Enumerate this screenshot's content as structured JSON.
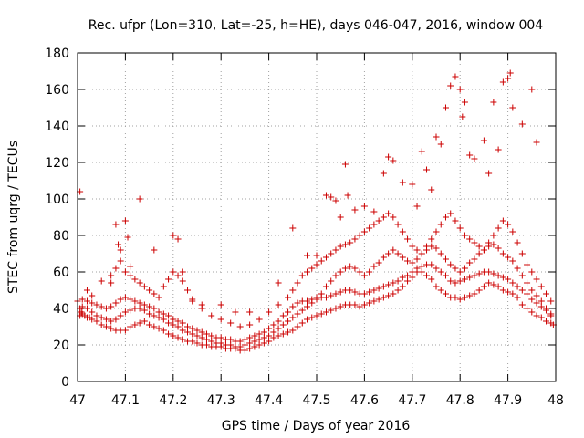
{
  "chart_data": {
    "type": "scatter",
    "title": "Rec. ufpr (Lon=310, Lat=-25, h=HE), days 046-047, 2016, window 004",
    "xlabel": "GPS time / Days of year 2016",
    "ylabel": "STEC from uqrg / TECUs",
    "xlim": [
      47,
      48
    ],
    "ylim": [
      0,
      180
    ],
    "xticks": [
      "47",
      "47.1",
      "47.2",
      "47.3",
      "47.4",
      "47.5",
      "47.6",
      "47.7",
      "47.8",
      "47.9",
      "48"
    ],
    "yticks": [
      "0",
      "20",
      "40",
      "60",
      "80",
      "100",
      "120",
      "140",
      "160",
      "180"
    ],
    "grid": true,
    "marker": "+",
    "color": "#cc0000",
    "series": [
      {
        "x": [
          47.005,
          47.008,
          47.01,
          47.015,
          47.02,
          47.025,
          47.03,
          47.04,
          47.05,
          47.06,
          47.07,
          47.08,
          47.09,
          47.1,
          47.11,
          47.12,
          47.13,
          47.14,
          47.15,
          47.16,
          47.17,
          47.18,
          47.19,
          47.2,
          47.21,
          47.22,
          47.23,
          47.24,
          47.25,
          47.26,
          47.27,
          47.28,
          47.29,
          47.3,
          47.31,
          47.32,
          47.33,
          47.34,
          47.35,
          47.36,
          47.37,
          47.38,
          47.39,
          47.4,
          47.41,
          47.42,
          47.43,
          47.44,
          47.45,
          47.46,
          47.47,
          47.48,
          47.49,
          47.5,
          47.51,
          47.52,
          47.53,
          47.54,
          47.55,
          47.56,
          47.57,
          47.58,
          47.59,
          47.6,
          47.61,
          47.62,
          47.63,
          47.64,
          47.65,
          47.66,
          47.67,
          47.68,
          47.69,
          47.7,
          47.71,
          47.72,
          47.73,
          47.74,
          47.75,
          47.76,
          47.77,
          47.78,
          47.79,
          47.8,
          47.81,
          47.82,
          47.83,
          47.84,
          47.85,
          47.86,
          47.87,
          47.88,
          47.89,
          47.9,
          47.91,
          47.92,
          47.93,
          47.94,
          47.95,
          47.96,
          47.97,
          47.98,
          47.99,
          47.995
        ],
        "y": [
          36,
          38,
          37,
          36,
          35,
          35,
          34,
          33,
          31,
          30,
          29,
          28,
          28,
          28,
          30,
          31,
          32,
          33,
          31,
          30,
          29,
          28,
          26,
          25,
          24,
          23,
          22,
          22,
          21,
          20,
          20,
          19,
          19,
          19,
          18,
          18,
          18,
          17,
          17,
          18,
          19,
          20,
          21,
          22,
          24,
          25,
          26,
          27,
          28,
          30,
          32,
          34,
          35,
          36,
          37,
          38,
          39,
          40,
          41,
          42,
          42,
          42,
          41,
          42,
          43,
          44,
          45,
          46,
          47,
          48,
          50,
          52,
          55,
          57,
          60,
          60,
          58,
          56,
          52,
          50,
          48,
          46,
          46,
          45,
          46,
          47,
          48,
          50,
          52,
          54,
          53,
          52,
          50,
          49,
          48,
          46,
          42,
          40,
          38,
          36,
          35,
          33,
          32,
          31
        ]
      },
      {
        "x": [
          47.005,
          47.01,
          47.02,
          47.03,
          47.04,
          47.05,
          47.06,
          47.07,
          47.08,
          47.09,
          47.1,
          47.11,
          47.12,
          47.13,
          47.14,
          47.15,
          47.16,
          47.17,
          47.18,
          47.19,
          47.2,
          47.21,
          47.22,
          47.23,
          47.24,
          47.25,
          47.26,
          47.27,
          47.28,
          47.29,
          47.3,
          47.31,
          47.32,
          47.33,
          47.34,
          47.35,
          47.36,
          47.37,
          47.38,
          47.39,
          47.4,
          47.41,
          47.42,
          47.43,
          47.44,
          47.45,
          47.46,
          47.47,
          47.48,
          47.49,
          47.5,
          47.51,
          47.52,
          47.53,
          47.54,
          47.55,
          47.56,
          47.57,
          47.58,
          47.59,
          47.6,
          47.61,
          47.62,
          47.63,
          47.64,
          47.65,
          47.66,
          47.67,
          47.68,
          47.69,
          47.7,
          47.71,
          47.72,
          47.73,
          47.74,
          47.75,
          47.76,
          47.77,
          47.78,
          47.79,
          47.8,
          47.81,
          47.82,
          47.83,
          47.84,
          47.85,
          47.86,
          47.87,
          47.88,
          47.89,
          47.9,
          47.91,
          47.92,
          47.93,
          47.94,
          47.95,
          47.96,
          47.97,
          47.98,
          47.99
        ],
        "y": [
          40,
          41,
          40,
          38,
          36,
          35,
          34,
          33,
          34,
          36,
          38,
          39,
          40,
          40,
          39,
          37,
          36,
          35,
          34,
          32,
          31,
          30,
          28,
          27,
          26,
          25,
          24,
          23,
          22,
          21,
          21,
          20,
          20,
          19,
          19,
          20,
          21,
          22,
          23,
          24,
          25,
          27,
          29,
          31,
          33,
          35,
          37,
          39,
          41,
          43,
          45,
          46,
          46,
          47,
          48,
          49,
          50,
          50,
          49,
          48,
          48,
          49,
          50,
          51,
          52,
          53,
          54,
          55,
          57,
          58,
          60,
          62,
          63,
          64,
          64,
          62,
          60,
          58,
          55,
          54,
          55,
          56,
          57,
          58,
          59,
          60,
          60,
          59,
          58,
          57,
          56,
          54,
          52,
          50,
          48,
          45,
          43,
          41,
          39,
          37
        ]
      },
      {
        "x": [
          47.0,
          47.01,
          47.02,
          47.03,
          47.04,
          47.05,
          47.06,
          47.07,
          47.08,
          47.09,
          47.1,
          47.11,
          47.12,
          47.13,
          47.14,
          47.15,
          47.16,
          47.17,
          47.18,
          47.19,
          47.2,
          47.21,
          47.22,
          47.23,
          47.24,
          47.25,
          47.26,
          47.27,
          47.28,
          47.29,
          47.3,
          47.31,
          47.32,
          47.33,
          47.34,
          47.35,
          47.36,
          47.37,
          47.38,
          47.39,
          47.4,
          47.41,
          47.42,
          47.43,
          47.44,
          47.45,
          47.46,
          47.47,
          47.48,
          47.49,
          47.5,
          47.51,
          47.52,
          47.53,
          47.54,
          47.55,
          47.56,
          47.57,
          47.58,
          47.59,
          47.6,
          47.61,
          47.62,
          47.63,
          47.64,
          47.65,
          47.66,
          47.67,
          47.68,
          47.69,
          47.7,
          47.71,
          47.72,
          47.73,
          47.74,
          47.75,
          47.76,
          47.77,
          47.78,
          47.79,
          47.8,
          47.81,
          47.82,
          47.83,
          47.84,
          47.85,
          47.86,
          47.87,
          47.88,
          47.89,
          47.9,
          47.91,
          47.92,
          47.93,
          47.94,
          47.95,
          47.96,
          47.97,
          47.98,
          47.99
        ],
        "y": [
          44,
          45,
          44,
          43,
          42,
          41,
          40,
          41,
          43,
          45,
          46,
          45,
          44,
          43,
          42,
          41,
          40,
          38,
          37,
          36,
          34,
          33,
          32,
          30,
          29,
          28,
          27,
          26,
          25,
          24,
          24,
          23,
          23,
          22,
          22,
          23,
          24,
          25,
          26,
          27,
          29,
          31,
          33,
          36,
          38,
          41,
          43,
          44,
          44,
          45,
          46,
          48,
          52,
          55,
          58,
          60,
          62,
          63,
          62,
          60,
          58,
          60,
          63,
          65,
          68,
          70,
          72,
          70,
          68,
          66,
          65,
          67,
          70,
          72,
          74,
          73,
          70,
          67,
          64,
          62,
          60,
          62,
          65,
          67,
          70,
          72,
          74,
          75,
          73,
          70,
          68,
          66,
          62,
          58,
          54,
          50,
          47,
          44,
          40,
          36
        ]
      },
      {
        "x": [
          47.02,
          47.03,
          47.05,
          47.07,
          47.08,
          47.09,
          47.1,
          47.11,
          47.12,
          47.13,
          47.14,
          47.15,
          47.16,
          47.17,
          47.18,
          47.19,
          47.2,
          47.21,
          47.22,
          47.23,
          47.24,
          47.26,
          47.28,
          47.3,
          47.32,
          47.34,
          47.36,
          47.38,
          47.4,
          47.42,
          47.44,
          47.45,
          47.46,
          47.47,
          47.48,
          47.49,
          47.5,
          47.51,
          47.52,
          47.53,
          47.54,
          47.55,
          47.56,
          47.57,
          47.58,
          47.59,
          47.6,
          47.61,
          47.62,
          47.63,
          47.64,
          47.65,
          47.66,
          47.67,
          47.68,
          47.69,
          47.7,
          47.71,
          47.72,
          47.73,
          47.74,
          47.75,
          47.76,
          47.77,
          47.78,
          47.79,
          47.8,
          47.81,
          47.82,
          47.83,
          47.84,
          47.85,
          47.86,
          47.87,
          47.88,
          47.89,
          47.9,
          47.91,
          47.92,
          47.93,
          47.94,
          47.95,
          47.96,
          47.97,
          47.98,
          47.99
        ],
        "y": [
          50,
          47,
          55,
          58,
          62,
          66,
          60,
          58,
          56,
          54,
          52,
          50,
          48,
          46,
          52,
          56,
          60,
          58,
          55,
          50,
          45,
          40,
          36,
          34,
          32,
          30,
          31,
          34,
          38,
          42,
          46,
          50,
          54,
          58,
          60,
          62,
          64,
          66,
          68,
          70,
          72,
          74,
          75,
          76,
          78,
          80,
          82,
          84,
          86,
          88,
          90,
          92,
          90,
          86,
          82,
          78,
          74,
          72,
          70,
          74,
          78,
          82,
          86,
          90,
          92,
          88,
          84,
          80,
          78,
          76,
          74,
          72,
          76,
          80,
          84,
          88,
          86,
          82,
          76,
          70,
          64,
          60,
          56,
          52,
          48,
          44
        ]
      },
      {
        "x": [
          47.005,
          47.07,
          47.08,
          47.085,
          47.09,
          47.1,
          47.105,
          47.11,
          47.13,
          47.16,
          47.2,
          47.21,
          47.22,
          47.24,
          47.26,
          47.3,
          47.33,
          47.36,
          47.42,
          47.45,
          47.48,
          47.5,
          47.52,
          47.53,
          47.54,
          47.55,
          47.56,
          47.565,
          47.58,
          47.6,
          47.62,
          47.64,
          47.65,
          47.66,
          47.68,
          47.7,
          47.71,
          47.72,
          47.73,
          47.74,
          47.75,
          47.76,
          47.77,
          47.78,
          47.79,
          47.8,
          47.805,
          47.81,
          47.82,
          47.83,
          47.85,
          47.86,
          47.87,
          47.88,
          47.89,
          47.9,
          47.905,
          47.91,
          47.93,
          47.95,
          47.96
        ],
        "y": [
          104,
          54,
          86,
          75,
          72,
          88,
          79,
          63,
          100,
          72,
          80,
          78,
          60,
          44,
          42,
          42,
          38,
          38,
          54,
          84,
          69,
          69,
          102,
          101,
          99,
          90,
          119,
          102,
          94,
          96,
          93,
          114,
          123,
          121,
          109,
          108,
          96,
          126,
          116,
          105,
          134,
          130,
          150,
          162,
          167,
          160,
          145,
          153,
          124,
          122,
          132,
          114,
          153,
          127,
          164,
          166,
          169,
          150,
          141,
          160,
          131
        ]
      }
    ]
  }
}
